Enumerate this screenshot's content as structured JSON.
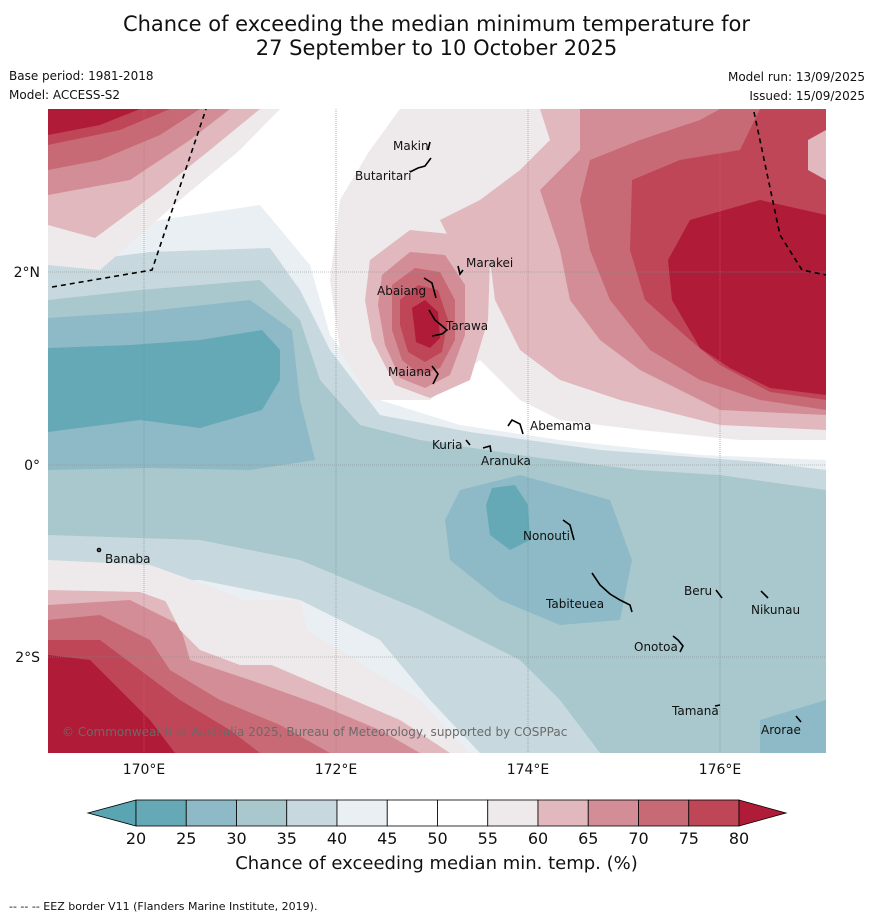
{
  "title_line1": "Chance of exceeding the median minimum temperature for",
  "title_line2": "27 September to 10 October 2025",
  "base_period": "Base period: 1981-2018",
  "model": "Model: ACCESS-S2",
  "model_run": "Model run: 13/09/2025",
  "issued": "Issued: 15/09/2025",
  "copyright": "© Commonwealth of Australia 2025, Bureau of Meteorology, supported by COSPPac",
  "colorbar_title": "Chance of exceeding median min. temp. (%)",
  "footer_note": "--  --  -- EEZ border V11 (Flanders Marine Institute, 2019).",
  "lon_ticks": [
    "170°E",
    "172°E",
    "174°E",
    "176°E"
  ],
  "lat_ticks": [
    "2°N",
    "0°",
    "2°S"
  ],
  "colorbar": {
    "ticks": [
      "20",
      "25",
      "30",
      "35",
      "40",
      "45",
      "50",
      "55",
      "60",
      "65",
      "70",
      "75",
      "80"
    ],
    "colors": [
      "#66a9b6",
      "#8dbac6",
      "#a8c8ce",
      "#c7d9de",
      "#e9eff2",
      "#ffffff",
      "#ffffff",
      "#eeeaeb",
      "#e0b8be",
      "#d38d96",
      "#c86a75",
      "#bf4656"
    ],
    "under_color": "#5aa5b2",
    "over_color": "#b01b37"
  },
  "places": [
    "Makin",
    "Butaritari",
    "Marakei",
    "Abaiang",
    "Tarawa",
    "Maiana",
    "Abemama",
    "Kuria",
    "Aranuka",
    "Nonouti",
    "Banaba",
    "Tabiteuea",
    "Beru",
    "Nikunau",
    "Onotoa",
    "Tamana",
    "Arorae"
  ]
}
